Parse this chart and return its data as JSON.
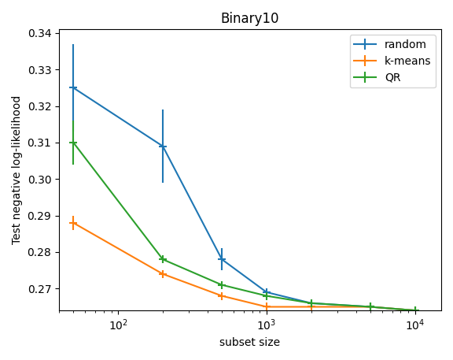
{
  "title": "Binary10",
  "xlabel": "subset size",
  "ylabel": "Test negative log-likelihood",
  "ylim": [
    0.264,
    0.341
  ],
  "xlim": [
    40,
    15000
  ],
  "xscale": "log",
  "series": [
    {
      "label": "random",
      "color": "#1f77b4",
      "x": [
        50,
        200,
        500,
        1000,
        2000,
        5000,
        10000
      ],
      "y": [
        0.325,
        0.309,
        0.278,
        0.269,
        0.266,
        0.265,
        0.264
      ],
      "yerr_lo": [
        0.012,
        0.01,
        0.003,
        0.0,
        0.0,
        0.0,
        0.0
      ],
      "yerr_hi": [
        0.012,
        0.01,
        0.003,
        0.0,
        0.0,
        0.0,
        0.0
      ]
    },
    {
      "label": "k-means",
      "color": "#ff7f0e",
      "x": [
        50,
        200,
        500,
        1000,
        2000,
        5000,
        10000
      ],
      "y": [
        0.288,
        0.274,
        0.268,
        0.265,
        0.265,
        0.265,
        0.264
      ],
      "yerr_lo": [
        0.002,
        0.001,
        0.0,
        0.0,
        0.0,
        0.0,
        0.0
      ],
      "yerr_hi": [
        0.002,
        0.001,
        0.0,
        0.0,
        0.0,
        0.0,
        0.0
      ]
    },
    {
      "label": "QR",
      "color": "#2ca02c",
      "x": [
        50,
        200,
        500,
        1000,
        2000,
        5000,
        10000
      ],
      "y": [
        0.31,
        0.278,
        0.271,
        0.268,
        0.266,
        0.265,
        0.264
      ],
      "yerr_lo": [
        0.006,
        0.001,
        0.0,
        0.0,
        0.0,
        0.0,
        0.0
      ],
      "yerr_hi": [
        0.006,
        0.001,
        0.0,
        0.0,
        0.0,
        0.0,
        0.0
      ]
    }
  ],
  "legend_loc": "upper right",
  "figsize": [
    5.76,
    4.57
  ],
  "dpi": 100
}
